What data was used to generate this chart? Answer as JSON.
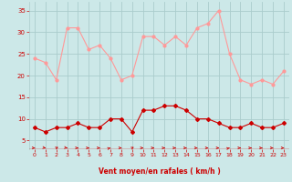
{
  "x": [
    0,
    1,
    2,
    3,
    4,
    5,
    6,
    7,
    8,
    9,
    10,
    11,
    12,
    13,
    14,
    15,
    16,
    17,
    18,
    19,
    20,
    21,
    22,
    23
  ],
  "wind_avg": [
    8,
    7,
    8,
    8,
    9,
    8,
    8,
    10,
    10,
    7,
    12,
    12,
    13,
    13,
    12,
    10,
    10,
    9,
    8,
    8,
    9,
    8,
    8,
    9
  ],
  "wind_gust": [
    24,
    23,
    19,
    31,
    31,
    26,
    27,
    24,
    19,
    20,
    29,
    29,
    27,
    29,
    27,
    31,
    32,
    35,
    25,
    19,
    18,
    19,
    18,
    21
  ],
  "bg_color": "#cce8e8",
  "grid_color": "#aacccc",
  "line_avg_color": "#cc0000",
  "line_gust_color": "#ff9999",
  "xlabel": "Vent moyen/en rafales ( km/h )",
  "xlabel_color": "#cc0000",
  "tick_color": "#cc0000",
  "yticks": [
    5,
    10,
    15,
    20,
    25,
    30,
    35
  ],
  "xtick_labels": [
    "0",
    "1",
    "2",
    "3",
    "4",
    "5",
    "6",
    "7",
    "8",
    "9",
    "10",
    "11",
    "12",
    "13",
    "14",
    "15",
    "16",
    "17",
    "18",
    "19",
    "20",
    "21",
    "22",
    "23"
  ],
  "ylim": [
    3,
    37
  ],
  "xlim": [
    -0.5,
    23.5
  ],
  "arrow_angles_deg": [
    0,
    -20,
    45,
    -20,
    0,
    0,
    0,
    30,
    0,
    50,
    0,
    0,
    0,
    0,
    0,
    0,
    0,
    0,
    30,
    0,
    0,
    0,
    0,
    0
  ]
}
